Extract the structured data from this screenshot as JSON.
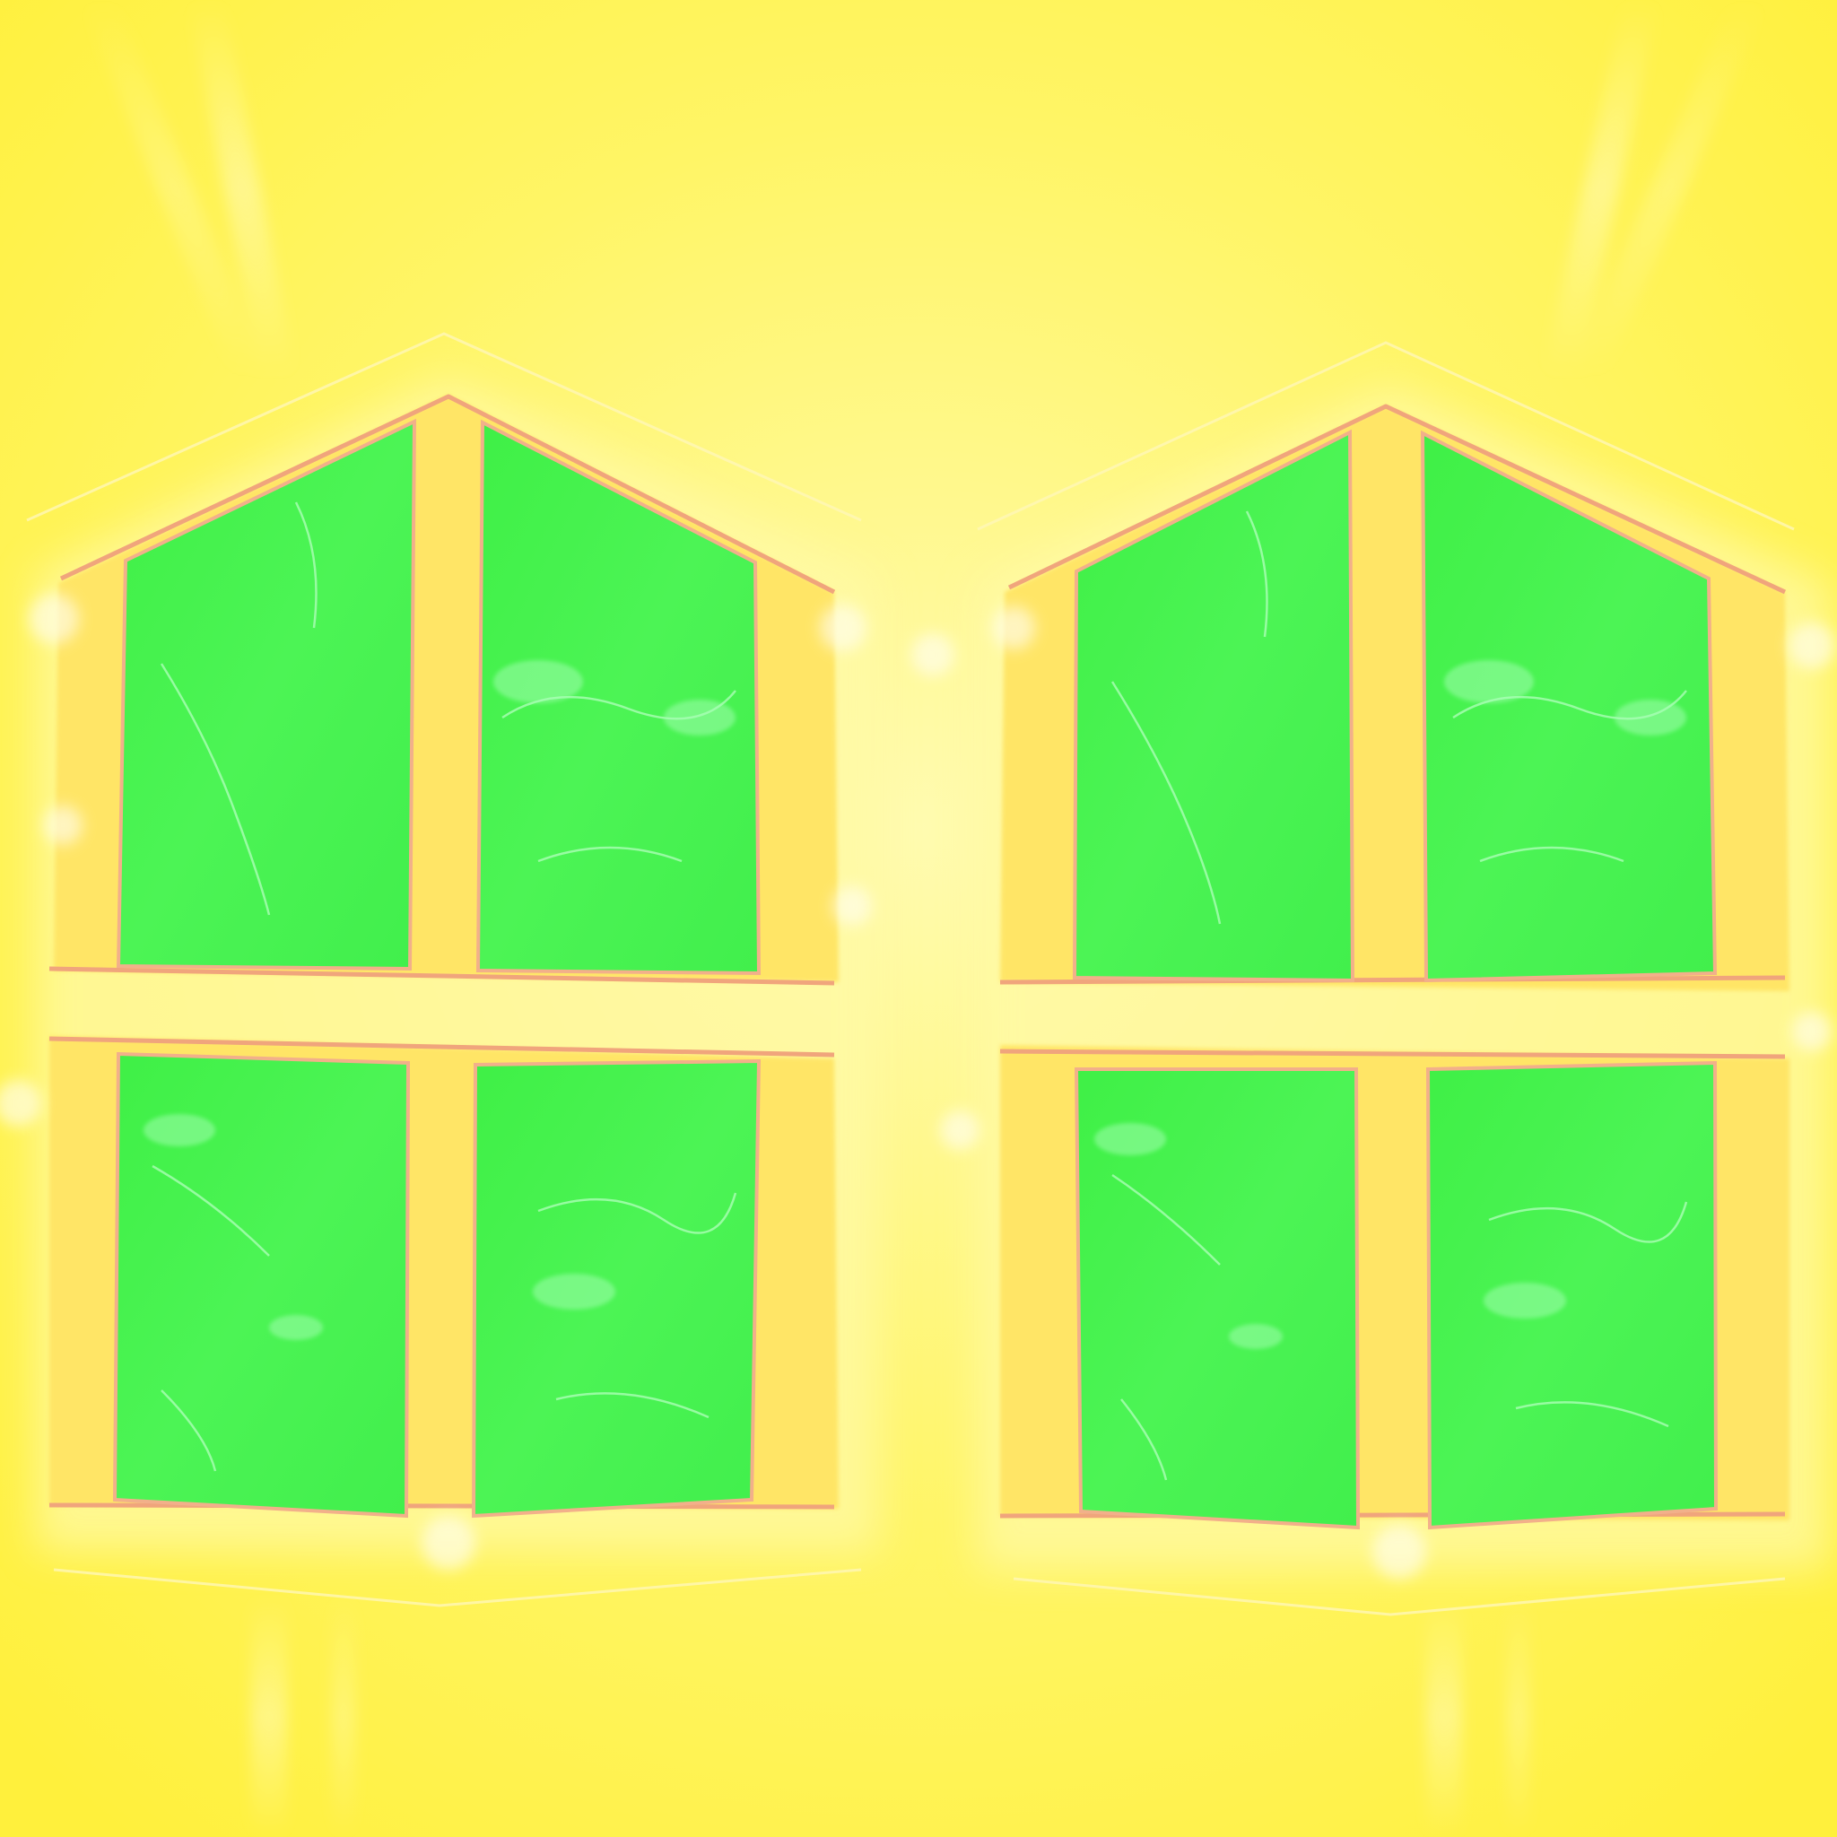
{
  "colors": {
    "background": "#fff34a",
    "background_center": "#fff98f",
    "glass": "#45f24a",
    "glass_light": "#7df98c",
    "frame": "#ffd24f",
    "frame_edge": "#f3a57a",
    "highlight": "#fffbe0"
  },
  "windows": [
    {
      "name": "left-window",
      "shape": "house-shaped gable window",
      "panes": [
        "upper-left",
        "upper-right",
        "lower-left",
        "lower-right"
      ]
    },
    {
      "name": "right-window",
      "shape": "house-shaped gable window",
      "panes": [
        "upper-left",
        "upper-right",
        "lower-left",
        "lower-right"
      ]
    }
  ]
}
